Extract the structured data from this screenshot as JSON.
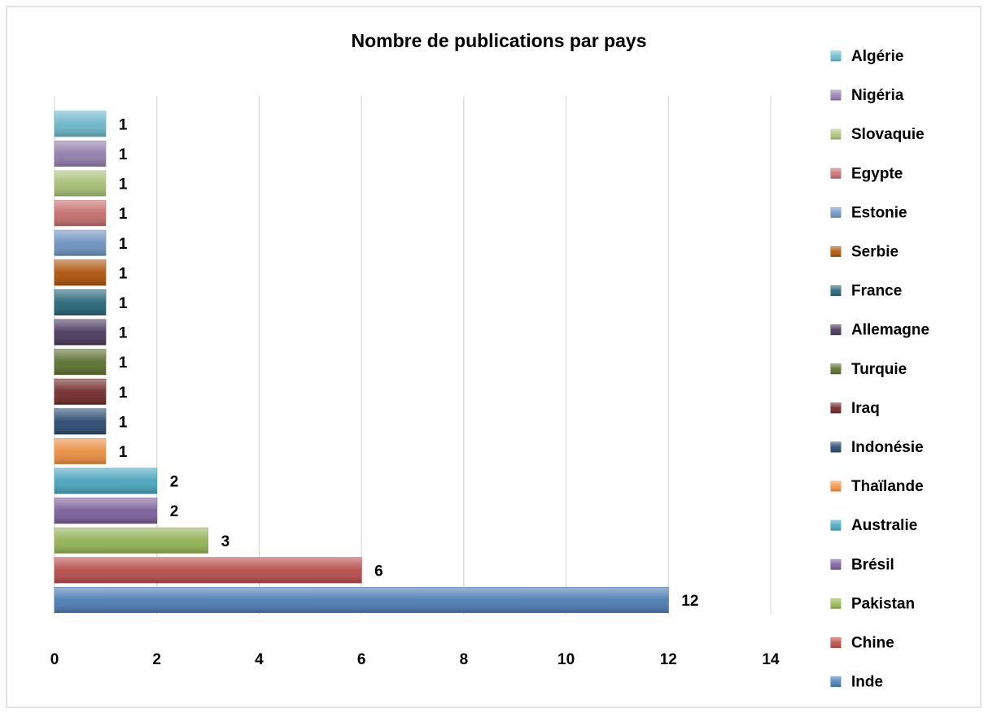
{
  "chart_data": {
    "type": "bar",
    "orientation": "horizontal",
    "title": "Nombre de publications par pays",
    "categories": [
      "Inde",
      "Chine",
      "Pakistan",
      "Brésil",
      "Australie",
      "Thaïlande",
      "Indonésie",
      "Iraq",
      "Turquie",
      "Allemagne",
      "France",
      "Serbie",
      "Estonie",
      "Egypte",
      "Slovaquie",
      "Nigéria",
      "Algérie"
    ],
    "values": [
      12,
      6,
      3,
      2,
      2,
      1,
      1,
      1,
      1,
      1,
      1,
      1,
      1,
      1,
      1,
      1,
      1
    ],
    "colors": [
      "#4f81bd",
      "#c0504d",
      "#9bbb59",
      "#8064a2",
      "#4bacc6",
      "#f79646",
      "#2c4d75",
      "#772c2a",
      "#5f7530",
      "#4d3b62",
      "#276a7c",
      "#b65708",
      "#729aca",
      "#cd7371",
      "#afc97a",
      "#9983b5",
      "#6fbdd1"
    ],
    "xlim": [
      0,
      14
    ],
    "xticks": [
      0,
      2,
      4,
      6,
      8,
      10,
      12,
      14
    ],
    "grid": true,
    "legend": "right"
  }
}
